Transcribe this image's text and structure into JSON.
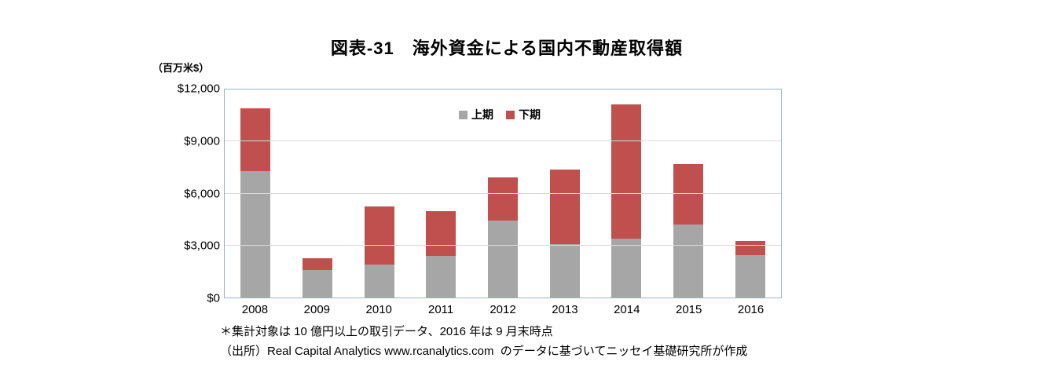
{
  "page": {
    "title": "図表-31　海外資金による国内不動産取得額",
    "unit_label": "（百万米$）",
    "footnote1": "＊集計対象は 10 億円以上の取引データ、2016 年は 9 月末時点",
    "footnote2": "（出所）Real Capital Analytics www.rcanalytics.com  のデータに基づいてニッセイ基礎研究所が作成"
  },
  "chart_data": {
    "type": "bar",
    "stacked": true,
    "title": "図表-31　海外資金による国内不動産取得額",
    "unit": "百万米$",
    "categories": [
      "2008",
      "2009",
      "2010",
      "2011",
      "2012",
      "2013",
      "2014",
      "2015",
      "2016"
    ],
    "series": [
      {
        "name": "上期",
        "color": "#a6a6a6",
        "values": [
          7300,
          1600,
          1900,
          2400,
          4450,
          3100,
          3400,
          4200,
          2450
        ]
      },
      {
        "name": "下期",
        "color": "#c0504d",
        "values": [
          3600,
          650,
          3350,
          2600,
          2500,
          4300,
          7750,
          3500,
          800
        ]
      }
    ],
    "totals": [
      10900,
      2250,
      5250,
      5000,
      6950,
      7400,
      11150,
      7700,
      3250
    ],
    "xlabel": "",
    "ylabel": "（百万米$）",
    "ylim": [
      0,
      12000
    ],
    "ytick_step": 3000,
    "ytick_labels": [
      "$0",
      "$3,000",
      "$6,000",
      "$9,000",
      "$12,000"
    ],
    "grid": true,
    "legend_position": "top-center-inside",
    "plot_border_color": "#95b3d7",
    "gridline_color": "#d9d9d9"
  }
}
